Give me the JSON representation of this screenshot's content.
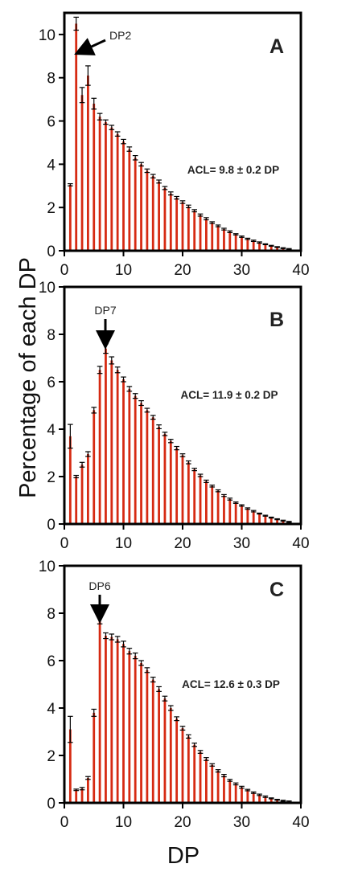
{
  "figure": {
    "ylabel": "Percentage of each DP",
    "xlabel": "DP",
    "colors": {
      "bar": "#d62a12",
      "frame": "#000000",
      "text": "#222222"
    }
  },
  "chart_data": [
    {
      "type": "bar",
      "panel": "A",
      "annotation": "ACL= 9.8 ± 0.2 DP",
      "peak_label": "DP2",
      "peak_dp": 2,
      "xlim": [
        0,
        40
      ],
      "ylim": [
        0,
        11
      ],
      "xticks": [
        0,
        10,
        20,
        30,
        40
      ],
      "yticks": [
        0,
        2,
        4,
        6,
        8,
        10
      ],
      "x": [
        1,
        2,
        3,
        4,
        5,
        6,
        7,
        8,
        9,
        10,
        11,
        12,
        13,
        14,
        15,
        16,
        17,
        18,
        19,
        20,
        21,
        22,
        23,
        24,
        25,
        26,
        27,
        28,
        29,
        30,
        31,
        32,
        33,
        34,
        35,
        36,
        37,
        38
      ],
      "values": [
        3.05,
        10.5,
        7.2,
        8.1,
        6.8,
        6.2,
        5.95,
        5.7,
        5.4,
        5.05,
        4.7,
        4.3,
        4.0,
        3.7,
        3.45,
        3.2,
        2.9,
        2.65,
        2.45,
        2.25,
        2.05,
        1.85,
        1.65,
        1.48,
        1.3,
        1.15,
        1.0,
        0.88,
        0.76,
        0.65,
        0.55,
        0.46,
        0.38,
        0.3,
        0.23,
        0.17,
        0.12,
        0.08
      ],
      "errors": [
        0.05,
        0.3,
        0.35,
        0.45,
        0.25,
        0.15,
        0.1,
        0.1,
        0.1,
        0.1,
        0.1,
        0.1,
        0.08,
        0.08,
        0.08,
        0.07,
        0.07,
        0.07,
        0.06,
        0.06,
        0.06,
        0.05,
        0.05,
        0.05,
        0.04,
        0.04,
        0.04,
        0.04,
        0.03,
        0.03,
        0.03,
        0.03,
        0.03,
        0.02,
        0.02,
        0.02,
        0.02,
        0.02
      ]
    },
    {
      "type": "bar",
      "panel": "B",
      "annotation": "ACL= 11.9 ± 0.2 DP",
      "peak_label": "DP7",
      "peak_dp": 7,
      "xlim": [
        0,
        40
      ],
      "ylim": [
        0,
        10
      ],
      "xticks": [
        0,
        10,
        20,
        30,
        40
      ],
      "yticks": [
        0,
        2,
        4,
        6,
        8,
        10
      ],
      "x": [
        1,
        2,
        3,
        4,
        5,
        6,
        7,
        8,
        9,
        10,
        11,
        12,
        13,
        14,
        15,
        16,
        17,
        18,
        19,
        20,
        21,
        22,
        23,
        24,
        25,
        26,
        27,
        28,
        29,
        30,
        31,
        32,
        33,
        34,
        35,
        36,
        37,
        38
      ],
      "values": [
        3.7,
        2.0,
        2.5,
        2.95,
        4.8,
        6.5,
        7.4,
        6.9,
        6.5,
        6.1,
        5.7,
        5.4,
        5.1,
        4.8,
        4.5,
        4.1,
        3.8,
        3.5,
        3.2,
        2.9,
        2.6,
        2.3,
        2.05,
        1.8,
        1.6,
        1.4,
        1.2,
        1.05,
        0.9,
        0.78,
        0.65,
        0.54,
        0.44,
        0.35,
        0.27,
        0.2,
        0.14,
        0.09
      ],
      "errors": [
        0.5,
        0.05,
        0.1,
        0.1,
        0.12,
        0.15,
        0.2,
        0.15,
        0.12,
        0.1,
        0.1,
        0.1,
        0.1,
        0.08,
        0.08,
        0.08,
        0.07,
        0.07,
        0.07,
        0.06,
        0.06,
        0.05,
        0.05,
        0.05,
        0.04,
        0.04,
        0.04,
        0.04,
        0.03,
        0.03,
        0.03,
        0.03,
        0.02,
        0.02,
        0.02,
        0.02,
        0.02,
        0.02
      ]
    },
    {
      "type": "bar",
      "panel": "C",
      "annotation": "ACL= 12.6 ± 0.3 DP",
      "peak_label": "DP6",
      "peak_dp": 6,
      "xlim": [
        0,
        40
      ],
      "ylim": [
        0,
        10
      ],
      "xticks": [
        0,
        10,
        20,
        30,
        40
      ],
      "yticks": [
        0,
        2,
        4,
        6,
        8,
        10
      ],
      "x": [
        1,
        2,
        3,
        4,
        5,
        6,
        7,
        8,
        9,
        10,
        11,
        12,
        13,
        14,
        15,
        16,
        17,
        18,
        19,
        20,
        21,
        22,
        23,
        24,
        25,
        26,
        27,
        28,
        29,
        30,
        31,
        32,
        33,
        34,
        35,
        36,
        37,
        38
      ],
      "values": [
        3.1,
        0.55,
        0.6,
        1.05,
        3.8,
        7.75,
        7.05,
        7.0,
        6.9,
        6.7,
        6.4,
        6.2,
        5.9,
        5.6,
        5.2,
        4.8,
        4.4,
        4.0,
        3.55,
        3.15,
        2.8,
        2.45,
        2.15,
        1.85,
        1.6,
        1.35,
        1.15,
        0.95,
        0.8,
        0.66,
        0.54,
        0.43,
        0.34,
        0.26,
        0.19,
        0.13,
        0.09,
        0.06
      ],
      "errors": [
        0.55,
        0.03,
        0.05,
        0.06,
        0.15,
        0.2,
        0.12,
        0.12,
        0.12,
        0.12,
        0.12,
        0.12,
        0.1,
        0.1,
        0.1,
        0.1,
        0.1,
        0.1,
        0.08,
        0.08,
        0.07,
        0.07,
        0.06,
        0.06,
        0.05,
        0.05,
        0.05,
        0.04,
        0.04,
        0.04,
        0.03,
        0.03,
        0.03,
        0.03,
        0.02,
        0.02,
        0.02,
        0.02
      ]
    }
  ]
}
